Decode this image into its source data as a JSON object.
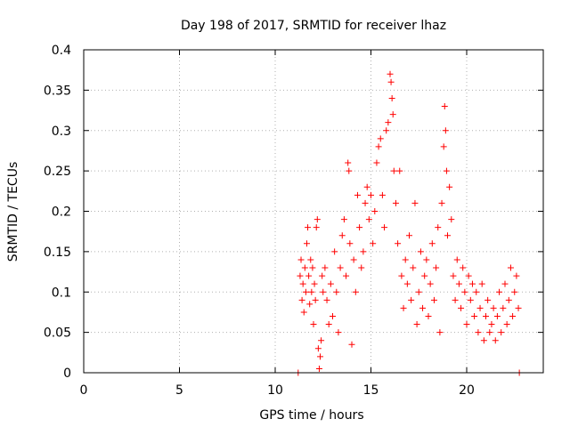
{
  "chart_data": {
    "type": "scatter",
    "title": "Day 198 of 2017, SRMTID for receiver lhaz",
    "xlabel": "GPS time / hours",
    "ylabel": "SRMTID / TECUs",
    "xlim": [
      0,
      24
    ],
    "ylim": [
      0,
      0.4
    ],
    "x_ticks": [
      0,
      5,
      10,
      15,
      20
    ],
    "x_tick_labels": [
      "0",
      "5",
      "10",
      "15",
      "20"
    ],
    "y_ticks": [
      0,
      0.05,
      0.1,
      0.15,
      0.2,
      0.25,
      0.3,
      0.35,
      0.4
    ],
    "y_tick_labels": [
      "0",
      "0.05",
      "0.1",
      "0.15",
      "0.2",
      "0.25",
      "0.3",
      "0.35",
      "0.4"
    ],
    "grid": true,
    "marker": "+",
    "color": "#ff0000",
    "series": [
      {
        "name": "SRMTID",
        "points": [
          [
            11.2,
            0.0
          ],
          [
            11.3,
            0.12
          ],
          [
            11.35,
            0.14
          ],
          [
            11.4,
            0.09
          ],
          [
            11.45,
            0.11
          ],
          [
            11.5,
            0.075
          ],
          [
            11.55,
            0.13
          ],
          [
            11.6,
            0.1
          ],
          [
            11.65,
            0.16
          ],
          [
            11.7,
            0.18
          ],
          [
            11.75,
            0.12
          ],
          [
            11.8,
            0.085
          ],
          [
            11.85,
            0.14
          ],
          [
            11.9,
            0.1
          ],
          [
            11.95,
            0.13
          ],
          [
            12.0,
            0.06
          ],
          [
            12.05,
            0.11
          ],
          [
            12.1,
            0.09
          ],
          [
            12.15,
            0.18
          ],
          [
            12.2,
            0.19
          ],
          [
            12.25,
            0.03
          ],
          [
            12.3,
            0.005
          ],
          [
            12.35,
            0.02
          ],
          [
            12.4,
            0.04
          ],
          [
            12.45,
            0.12
          ],
          [
            12.5,
            0.1
          ],
          [
            12.6,
            0.13
          ],
          [
            12.7,
            0.09
          ],
          [
            12.8,
            0.06
          ],
          [
            12.9,
            0.11
          ],
          [
            13.0,
            0.07
          ],
          [
            13.1,
            0.15
          ],
          [
            13.2,
            0.1
          ],
          [
            13.3,
            0.05
          ],
          [
            13.4,
            0.13
          ],
          [
            13.5,
            0.17
          ],
          [
            13.6,
            0.19
          ],
          [
            13.7,
            0.12
          ],
          [
            13.8,
            0.26
          ],
          [
            13.85,
            0.25
          ],
          [
            13.9,
            0.16
          ],
          [
            14.0,
            0.035
          ],
          [
            14.1,
            0.14
          ],
          [
            14.2,
            0.1
          ],
          [
            14.3,
            0.22
          ],
          [
            14.4,
            0.18
          ],
          [
            14.5,
            0.13
          ],
          [
            14.6,
            0.15
          ],
          [
            14.7,
            0.21
          ],
          [
            14.8,
            0.23
          ],
          [
            14.9,
            0.19
          ],
          [
            15.0,
            0.22
          ],
          [
            15.1,
            0.16
          ],
          [
            15.2,
            0.2
          ],
          [
            15.3,
            0.26
          ],
          [
            15.4,
            0.28
          ],
          [
            15.5,
            0.29
          ],
          [
            15.6,
            0.22
          ],
          [
            15.7,
            0.18
          ],
          [
            15.8,
            0.3
          ],
          [
            15.9,
            0.31
          ],
          [
            16.0,
            0.37
          ],
          [
            16.05,
            0.36
          ],
          [
            16.1,
            0.34
          ],
          [
            16.15,
            0.32
          ],
          [
            16.2,
            0.25
          ],
          [
            16.3,
            0.21
          ],
          [
            16.4,
            0.16
          ],
          [
            16.5,
            0.25
          ],
          [
            16.6,
            0.12
          ],
          [
            16.7,
            0.08
          ],
          [
            16.8,
            0.14
          ],
          [
            16.9,
            0.11
          ],
          [
            17.0,
            0.17
          ],
          [
            17.1,
            0.09
          ],
          [
            17.2,
            0.13
          ],
          [
            17.3,
            0.21
          ],
          [
            17.4,
            0.06
          ],
          [
            17.5,
            0.1
          ],
          [
            17.6,
            0.15
          ],
          [
            17.7,
            0.08
          ],
          [
            17.8,
            0.12
          ],
          [
            17.9,
            0.14
          ],
          [
            18.0,
            0.07
          ],
          [
            18.1,
            0.11
          ],
          [
            18.2,
            0.16
          ],
          [
            18.3,
            0.09
          ],
          [
            18.4,
            0.13
          ],
          [
            18.5,
            0.18
          ],
          [
            18.6,
            0.05
          ],
          [
            18.7,
            0.21
          ],
          [
            18.8,
            0.28
          ],
          [
            18.85,
            0.33
          ],
          [
            18.9,
            0.3
          ],
          [
            18.95,
            0.25
          ],
          [
            19.0,
            0.17
          ],
          [
            19.1,
            0.23
          ],
          [
            19.2,
            0.19
          ],
          [
            19.3,
            0.12
          ],
          [
            19.4,
            0.09
          ],
          [
            19.5,
            0.14
          ],
          [
            19.6,
            0.11
          ],
          [
            19.7,
            0.08
          ],
          [
            19.8,
            0.13
          ],
          [
            19.9,
            0.1
          ],
          [
            20.0,
            0.06
          ],
          [
            20.1,
            0.12
          ],
          [
            20.2,
            0.09
          ],
          [
            20.3,
            0.11
          ],
          [
            20.4,
            0.07
          ],
          [
            20.5,
            0.1
          ],
          [
            20.6,
            0.05
          ],
          [
            20.7,
            0.08
          ],
          [
            20.8,
            0.11
          ],
          [
            20.9,
            0.04
          ],
          [
            21.0,
            0.07
          ],
          [
            21.1,
            0.09
          ],
          [
            21.2,
            0.05
          ],
          [
            21.3,
            0.06
          ],
          [
            21.4,
            0.08
          ],
          [
            21.5,
            0.04
          ],
          [
            21.6,
            0.07
          ],
          [
            21.7,
            0.1
          ],
          [
            21.8,
            0.05
          ],
          [
            21.9,
            0.08
          ],
          [
            22.0,
            0.11
          ],
          [
            22.1,
            0.06
          ],
          [
            22.2,
            0.09
          ],
          [
            22.3,
            0.13
          ],
          [
            22.4,
            0.07
          ],
          [
            22.5,
            0.1
          ],
          [
            22.6,
            0.12
          ],
          [
            22.7,
            0.08
          ],
          [
            22.75,
            0.0
          ]
        ]
      }
    ]
  }
}
